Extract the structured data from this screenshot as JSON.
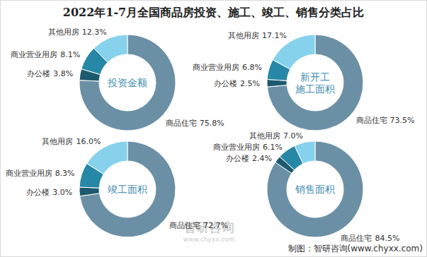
{
  "title": "2022年1-7月全国商品房投资、施工、竣工、销售分类占比",
  "footer": "制图：智研咨询(www.chyxx.com)",
  "watermark": [
    "智研咨询",
    "www.chyxx.com"
  ],
  "chart_data": [
    {
      "type": "pie",
      "title": "投资金额",
      "categories": [
        "商品住宅",
        "办公楼",
        "商业营业用房",
        "其他用房"
      ],
      "values": [
        75.8,
        3.8,
        8.1,
        12.3
      ],
      "value_labels": [
        "75.8%",
        "3.8%",
        "8.1%",
        "12.3%"
      ],
      "colors": [
        "#6b90a6",
        "#1d5a6e",
        "#2787a6",
        "#86d2ec"
      ],
      "data_labels": true
    },
    {
      "type": "pie",
      "title": "新开工\n施工面积",
      "categories": [
        "商品住宅",
        "办公楼",
        "商业营业用房",
        "其他用房"
      ],
      "values": [
        73.5,
        2.5,
        6.8,
        17.1
      ],
      "value_labels": [
        "73.5%",
        "2.5%",
        "6.8%",
        "17.1%"
      ],
      "colors": [
        "#6b90a6",
        "#1d5a6e",
        "#2787a6",
        "#86d2ec"
      ],
      "data_labels": true
    },
    {
      "type": "pie",
      "title": "竣工面积",
      "categories": [
        "商品住宅",
        "办公楼",
        "商业营业用房",
        "其他用房"
      ],
      "values": [
        72.7,
        3.0,
        8.3,
        16.0
      ],
      "value_labels": [
        "72.7%",
        "3.0%",
        "8.3%",
        "16.0%"
      ],
      "colors": [
        "#6b90a6",
        "#1d5a6e",
        "#2787a6",
        "#86d2ec"
      ],
      "data_labels": true
    },
    {
      "type": "pie",
      "title": "销售面积",
      "categories": [
        "商品住宅",
        "办公楼",
        "商业营业用房",
        "其他用房"
      ],
      "values": [
        84.5,
        2.4,
        6.1,
        7.0
      ],
      "value_labels": [
        "84.5%",
        "2.4%",
        "6.1%",
        "7.0%"
      ],
      "colors": [
        "#6b90a6",
        "#1d5a6e",
        "#2787a6",
        "#86d2ec"
      ],
      "data_labels": true
    }
  ]
}
